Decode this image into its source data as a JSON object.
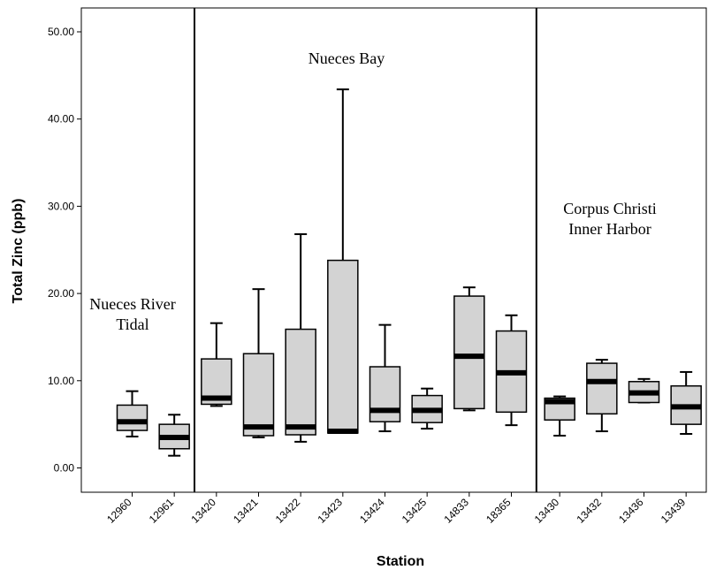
{
  "chart_data": {
    "type": "box",
    "title": "",
    "xlabel": "Station",
    "ylabel": "Total Zinc (ppb)",
    "ylim": [
      -2.8,
      53
    ],
    "yticks": [
      0,
      10,
      20,
      30,
      40,
      50
    ],
    "ytick_labels": [
      "0.00",
      "10.00",
      "20.00",
      "30.00",
      "40.00",
      "50.00"
    ],
    "categories": [
      "12960",
      "12961",
      "13420",
      "13421",
      "13422",
      "13423",
      "13424",
      "13425",
      "14833",
      "18365",
      "13430",
      "13432",
      "13436",
      "13439"
    ],
    "boxes": [
      {
        "station": "12960",
        "min": 3.6,
        "q1": 4.3,
        "median": 5.3,
        "q3": 7.2,
        "max": 8.8
      },
      {
        "station": "12961",
        "min": 1.4,
        "q1": 2.2,
        "median": 3.5,
        "q3": 5.0,
        "max": 6.1
      },
      {
        "station": "13420",
        "min": 7.1,
        "q1": 7.3,
        "median": 8.0,
        "q3": 12.5,
        "max": 16.6
      },
      {
        "station": "13421",
        "min": 3.5,
        "q1": 3.7,
        "median": 4.7,
        "q3": 13.1,
        "max": 20.5
      },
      {
        "station": "13422",
        "min": 3.0,
        "q1": 3.8,
        "median": 4.7,
        "q3": 15.9,
        "max": 26.8
      },
      {
        "station": "13423",
        "min": 4.0,
        "q1": 4.0,
        "median": 4.2,
        "q3": 23.8,
        "max": 43.4
      },
      {
        "station": "13424",
        "min": 4.2,
        "q1": 5.3,
        "median": 6.6,
        "q3": 11.6,
        "max": 16.4
      },
      {
        "station": "13425",
        "min": 4.5,
        "q1": 5.2,
        "median": 6.6,
        "q3": 8.3,
        "max": 9.1
      },
      {
        "station": "14833",
        "min": 6.6,
        "q1": 6.8,
        "median": 12.8,
        "q3": 19.7,
        "max": 20.7
      },
      {
        "station": "18365",
        "min": 4.9,
        "q1": 6.4,
        "median": 10.9,
        "q3": 15.7,
        "max": 17.5
      },
      {
        "station": "13430",
        "min": 3.7,
        "q1": 5.5,
        "median": 7.6,
        "q3": 8.0,
        "max": 8.2
      },
      {
        "station": "13432",
        "min": 4.2,
        "q1": 6.2,
        "median": 9.9,
        "q3": 12.0,
        "max": 12.4
      },
      {
        "station": "13436",
        "min": 7.5,
        "q1": 7.5,
        "median": 8.6,
        "q3": 9.9,
        "max": 10.2
      },
      {
        "station": "13439",
        "min": 3.9,
        "q1": 5.0,
        "median": 7.0,
        "q3": 9.4,
        "max": 11.0
      }
    ],
    "regions": [
      {
        "lines": [
          "Nueces River",
          "Tidal"
        ],
        "stations": [
          "12960",
          "12961"
        ]
      },
      {
        "lines": [
          "Nueces Bay"
        ],
        "stations": [
          "13420",
          "13421",
          "13422",
          "13423",
          "13424",
          "13425",
          "14833",
          "18365"
        ]
      },
      {
        "lines": [
          "Corpus Christi",
          "Inner Harbor"
        ],
        "stations": [
          "13430",
          "13432",
          "13436",
          "13439"
        ]
      }
    ],
    "colors": {
      "box_fill": "#d3d3d3",
      "median": "#000000",
      "line": "#000000"
    },
    "grid": false,
    "legend": "none"
  }
}
